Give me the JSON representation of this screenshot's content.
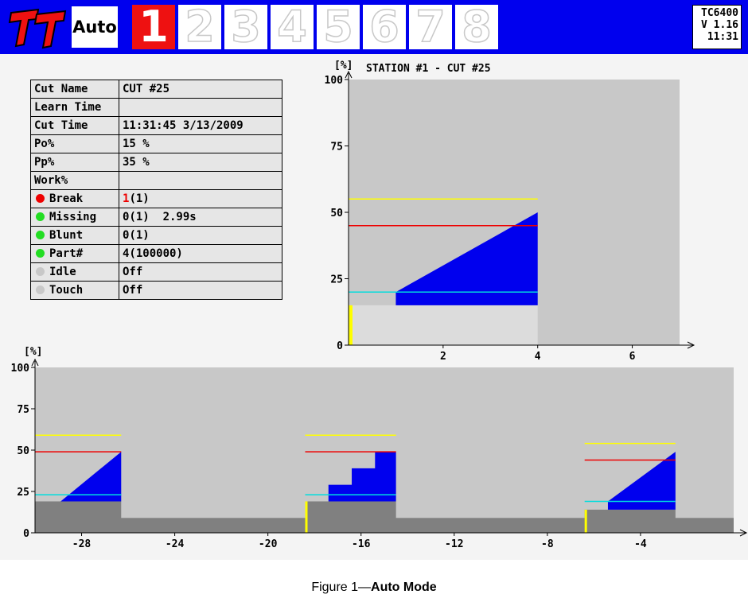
{
  "header": {
    "logo": "TT",
    "mode": "Auto",
    "stations": [
      "1",
      "2",
      "3",
      "4",
      "5",
      "6",
      "7",
      "8"
    ],
    "active_station": "1",
    "device": "TC6400",
    "version": "V 1.16",
    "clock": "11:31"
  },
  "info_table": {
    "rows": [
      {
        "label": "Cut Name",
        "value": "CUT #25"
      },
      {
        "label": "Learn Time",
        "value": ""
      },
      {
        "label": "Cut Time",
        "value": "11:31:45 3/13/2009"
      },
      {
        "label": "Po%",
        "value": "15 %"
      },
      {
        "label": "Pp%",
        "value": "35 %"
      },
      {
        "label": "Work%",
        "value": ""
      },
      {
        "label": "Break",
        "value_main": "1",
        "value_rest": "(1)",
        "status_color": "#ee0000"
      },
      {
        "label": "Missing",
        "value": "0(1)  2.99s",
        "status_color": "#22dd22"
      },
      {
        "label": "Blunt",
        "value": "0(1)",
        "status_color": "#22dd22"
      },
      {
        "label": "Part#",
        "value": "4(100000)",
        "status_color": "#22dd22"
      },
      {
        "label": "Idle",
        "value": "Off",
        "status_color": "#c8c8c8"
      },
      {
        "label": "Touch",
        "value": "Off",
        "status_color": "#c8c8c8"
      }
    ]
  },
  "chart_top": {
    "title": "STATION #1 - CUT #25",
    "y_unit": "[%]",
    "y_ticks": [
      "100",
      "75",
      "50",
      "25",
      "0"
    ],
    "x_ticks": [
      "2",
      "4",
      "6"
    ]
  },
  "chart_bottom": {
    "y_unit": "[%]",
    "y_ticks": [
      "100",
      "75",
      "50",
      "25",
      "0"
    ],
    "x_ticks": [
      "-28",
      "-24",
      "-20",
      "-16",
      "-12",
      "-8",
      "-4"
    ]
  },
  "chart_data": [
    {
      "type": "area",
      "title": "STATION #1 - CUT #25",
      "ylabel": "[%]",
      "ylim": [
        0,
        100
      ],
      "xlim": [
        0,
        7
      ],
      "x_ticks": [
        2,
        4,
        6
      ],
      "y_ticks": [
        0,
        25,
        50,
        75,
        100
      ],
      "thresholds": {
        "yellow": 55,
        "red": 45,
        "cyan": 20
      },
      "series": [
        {
          "name": "base",
          "x": [
            0,
            4
          ],
          "values": [
            15,
            15
          ]
        },
        {
          "name": "load",
          "x": [
            1,
            4
          ],
          "values": [
            20,
            50
          ]
        }
      ],
      "colors": {
        "background": "#c8c8c8",
        "base": "#dcdcdc",
        "load": "#0000ee",
        "yellow": "#ffff00",
        "red": "#ee0000",
        "cyan": "#00dddd"
      }
    },
    {
      "type": "area",
      "ylabel": "[%]",
      "ylim": [
        0,
        100
      ],
      "xlim": [
        -30,
        0
      ],
      "x_ticks": [
        -28,
        -24,
        -20,
        -16,
        -12,
        -8,
        -4
      ],
      "y_ticks": [
        0,
        25,
        50,
        75,
        100
      ],
      "cuts": [
        {
          "start": -30,
          "end": -26.3,
          "base": 19,
          "load": [
            [
              -28.9,
              19
            ],
            [
              -26.3,
              49
            ]
          ],
          "yellow": 59,
          "red": 49,
          "cyan": 23
        },
        {
          "start": -18.4,
          "end": -14.5,
          "base": 19,
          "load": [
            [
              -17.4,
              19
            ],
            [
              -17.4,
              29
            ],
            [
              -16.4,
              29
            ],
            [
              -16.4,
              39
            ],
            [
              -15.4,
              39
            ],
            [
              -15.4,
              49
            ],
            [
              -14.5,
              49
            ],
            [
              -14.5,
              19
            ]
          ],
          "yellow": 59,
          "red": 49,
          "cyan": 23
        },
        {
          "start": -6.4,
          "end": -2.5,
          "base": 14,
          "load": [
            [
              -5.4,
              19
            ],
            [
              -2.5,
              49
            ]
          ],
          "yellow": 54,
          "red": 44,
          "cyan": 19
        }
      ],
      "idle_level": 9
    }
  ]
}
